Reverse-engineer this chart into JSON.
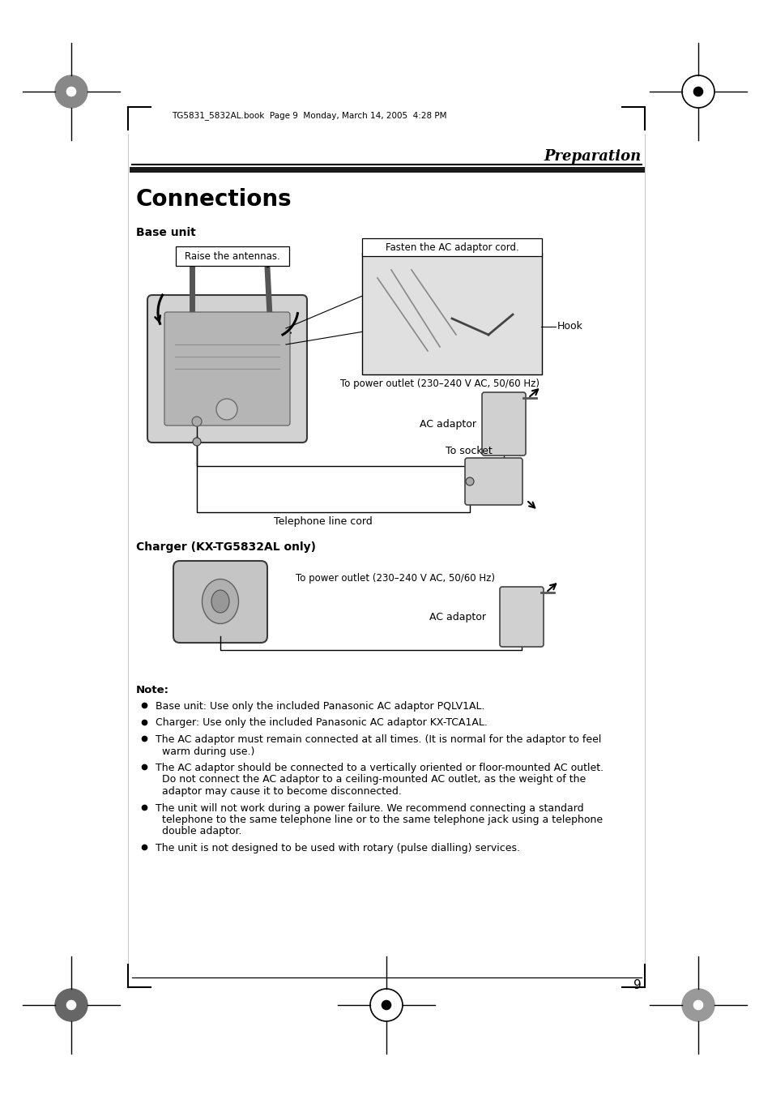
{
  "page_title": "Preparation",
  "section_title": "Connections",
  "subsection1": "Base unit",
  "subsection2": "Charger (KX-TG5832AL only)",
  "header_text": "TG5831_5832AL.book  Page 9  Monday, March 14, 2005  4:28 PM",
  "page_number": "9",
  "note_title": "Note:",
  "note_bullets": [
    "Base unit: Use only the included Panasonic AC adaptor PQLV1AL.",
    "Charger: Use only the included Panasonic AC adaptor KX-TCA1AL.",
    "The AC adaptor must remain connected at all times. (It is normal for the adaptor to feel\n    warm during use.)",
    "The AC adaptor should be connected to a vertically oriented or floor-mounted AC outlet.\n    Do not connect the AC adaptor to a ceiling-mounted AC outlet, as the weight of the\n    adaptor may cause it to become disconnected.",
    "The unit will not work during a power failure. We recommend connecting a standard\n    telephone to the same telephone line or to the same telephone jack using a telephone\n    double adaptor.",
    "The unit is not designed to be used with rotary (pulse dialling) services."
  ],
  "label_raise_antennas": "Raise the antennas.",
  "label_fasten_cord": "Fasten the AC adaptor cord.",
  "label_hook": "Hook",
  "label_power_outlet1": "To power outlet (230–240 V AC, 50/60 Hz)",
  "label_ac_adaptor1": "AC adaptor",
  "label_to_socket": "To socket",
  "label_tel_line_cord": "Telephone line cord",
  "label_power_outlet2": "To power outlet (230–240 V AC, 50/60 Hz)",
  "label_ac_adaptor2": "AC adaptor",
  "bg_color": "#ffffff",
  "text_color": "#000000",
  "section_bar_color": "#404040"
}
